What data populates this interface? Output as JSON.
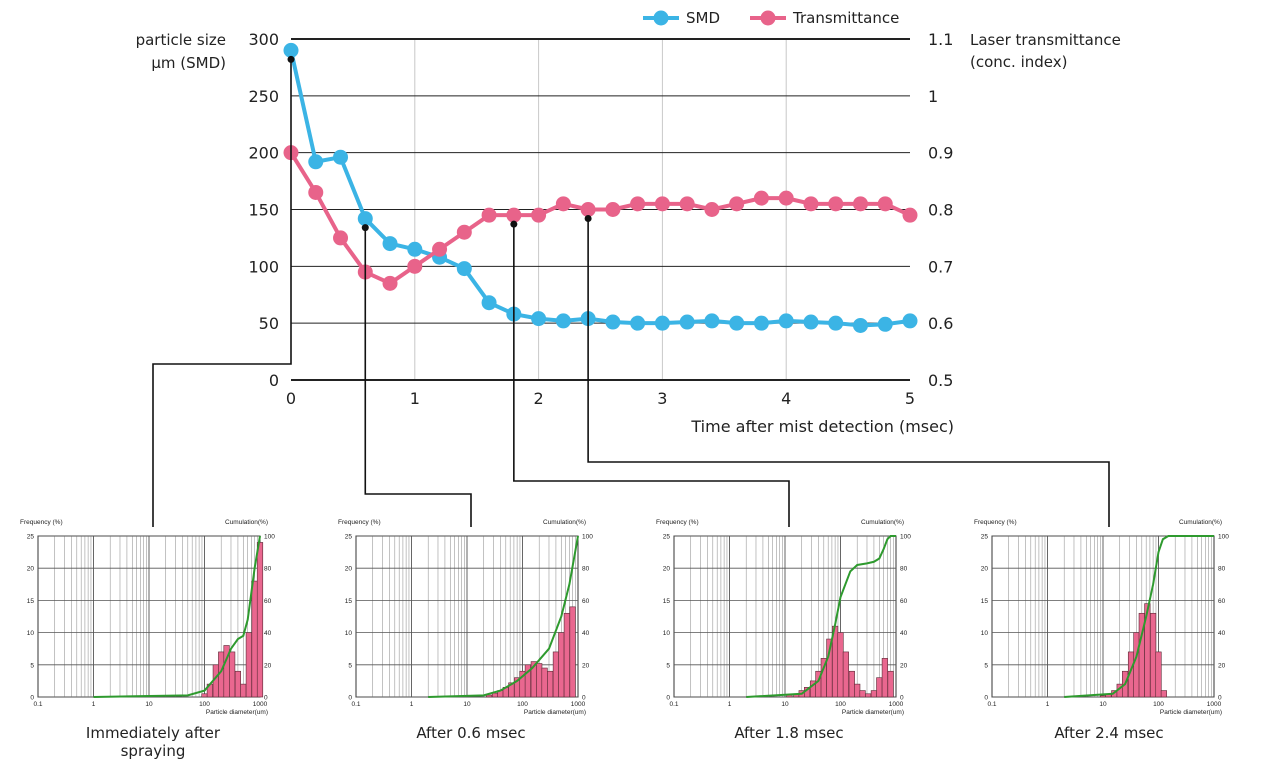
{
  "chart_data": [
    {
      "type": "line",
      "xlabel": "Time after mist detection (msec)",
      "ylabel": "particle size µm (SMD)",
      "ylabel_lines": [
        "particle size",
        "µm (SMD)"
      ],
      "y2label": "Laser transmittance (conc. index)",
      "y2label_lines": [
        "Laser transmittance",
        "(conc. index)"
      ],
      "xlim": [
        0,
        5
      ],
      "ylim": [
        0,
        300
      ],
      "y2lim": [
        0.5,
        1.1
      ],
      "x_ticks": [
        "0",
        "1",
        "2",
        "3",
        "4",
        "5"
      ],
      "y_ticks": [
        "0",
        "50",
        "100",
        "150",
        "200",
        "250",
        "300"
      ],
      "y2_ticks": [
        "0.5",
        "0.6",
        "0.7",
        "0.8",
        "0.9",
        "1",
        "1.1"
      ],
      "grid": true,
      "legend_position": "top-right",
      "series": [
        {
          "name": "SMD",
          "axis": "left",
          "color": "#3bb4e5",
          "x": [
            0,
            0.2,
            0.4,
            0.6,
            0.8,
            1.0,
            1.2,
            1.4,
            1.6,
            1.8,
            2.0,
            2.2,
            2.4,
            2.6,
            2.8,
            3.0,
            3.2,
            3.4,
            3.6,
            3.8,
            4.0,
            4.2,
            4.4,
            4.6,
            4.8,
            5.0
          ],
          "values": [
            290,
            192,
            196,
            142,
            120,
            115,
            108,
            98,
            68,
            58,
            54,
            52,
            54,
            51,
            50,
            50,
            51,
            52,
            50,
            50,
            52,
            51,
            50,
            48,
            49,
            52
          ]
        },
        {
          "name": "Transmittance",
          "axis": "right",
          "color": "#e8638a",
          "x": [
            0,
            0.2,
            0.4,
            0.6,
            0.8,
            1.0,
            1.2,
            1.4,
            1.6,
            1.8,
            2.0,
            2.2,
            2.4,
            2.6,
            2.8,
            3.0,
            3.2,
            3.4,
            3.6,
            3.8,
            4.0,
            4.2,
            4.4,
            4.6,
            4.8,
            5.0
          ],
          "values": [
            0.9,
            0.83,
            0.75,
            0.69,
            0.67,
            0.7,
            0.73,
            0.76,
            0.79,
            0.79,
            0.79,
            0.81,
            0.8,
            0.8,
            0.81,
            0.81,
            0.81,
            0.8,
            0.81,
            0.82,
            0.82,
            0.81,
            0.81,
            0.81,
            0.81,
            0.79
          ]
        }
      ],
      "callouts": [
        0,
        0.6,
        1.8,
        2.4
      ]
    },
    {
      "type": "bar",
      "caption": "Immediately after spraying",
      "caption_lines": [
        "Immediately after",
        "spraying"
      ],
      "ylabel": "Frequency (%)",
      "y2label": "Cumulation(%)",
      "xlabel": "Particle diameter(um)",
      "x_ticks": [
        "0.1",
        "1",
        "10",
        "100",
        "1000"
      ],
      "y_ticks": [
        "0",
        "5",
        "10",
        "15",
        "20",
        "25"
      ],
      "y2_ticks": [
        "0",
        "20",
        "40",
        "60",
        "80",
        "100"
      ],
      "xscale": "log",
      "xlim": [
        0.1,
        1000
      ],
      "ylim": [
        0,
        25
      ],
      "y2lim": [
        0,
        100
      ],
      "x": [
        100,
        125,
        160,
        200,
        250,
        315,
        400,
        500,
        630,
        800,
        1000
      ],
      "values": [
        0.5,
        2,
        5,
        7,
        8,
        7,
        4,
        2,
        10,
        18,
        24
      ],
      "cumulative": {
        "x": [
          1,
          50,
          100,
          200,
          300,
          400,
          500,
          600,
          700,
          800,
          1000
        ],
        "values": [
          0,
          1,
          4,
          16,
          30,
          36,
          38,
          48,
          65,
          80,
          100
        ]
      }
    },
    {
      "type": "bar",
      "caption": "After 0.6 msec",
      "caption_lines": [
        "After 0.6 msec"
      ],
      "ylabel": "Frequency (%)",
      "y2label": "Cumulation(%)",
      "xlabel": "Particle diameter(um)",
      "x_ticks": [
        "0.1",
        "1",
        "10",
        "100",
        "1000"
      ],
      "y_ticks": [
        "0",
        "5",
        "10",
        "15",
        "20",
        "25"
      ],
      "y2_ticks": [
        "0",
        "20",
        "40",
        "60",
        "80",
        "100"
      ],
      "xscale": "log",
      "xlim": [
        0.1,
        1000
      ],
      "ylim": [
        0,
        25
      ],
      "y2lim": [
        0,
        100
      ],
      "x": [
        25,
        32,
        40,
        50,
        63,
        80,
        100,
        125,
        160,
        200,
        250,
        315,
        400,
        500,
        630,
        800
      ],
      "values": [
        0.3,
        0.6,
        1,
        1.5,
        2.2,
        3,
        4,
        5,
        5.5,
        5.2,
        4.5,
        4,
        7,
        10,
        13,
        14
      ],
      "cumulative": {
        "x": [
          2,
          20,
          40,
          80,
          150,
          300,
          500,
          700,
          1000
        ],
        "values": [
          0,
          1,
          4,
          10,
          18,
          30,
          50,
          70,
          100
        ]
      }
    },
    {
      "type": "bar",
      "caption": "After 1.8 msec",
      "caption_lines": [
        "After 1.8 msec"
      ],
      "ylabel": "Frequency (%)",
      "y2label": "Cumulation(%)",
      "xlabel": "Particle diameter(um)",
      "x_ticks": [
        "0.1",
        "1",
        "10",
        "100",
        "1000"
      ],
      "y_ticks": [
        "0",
        "5",
        "10",
        "15",
        "20",
        "25"
      ],
      "y2_ticks": [
        "0",
        "20",
        "40",
        "60",
        "80",
        "100"
      ],
      "xscale": "log",
      "xlim": [
        0.1,
        1000
      ],
      "ylim": [
        0,
        25
      ],
      "y2lim": [
        0,
        100
      ],
      "x": [
        12,
        16,
        20,
        25,
        32,
        40,
        50,
        63,
        80,
        100,
        125,
        160,
        200,
        250,
        315,
        400,
        500,
        630,
        800
      ],
      "values": [
        0.3,
        0.5,
        1,
        1.5,
        2.5,
        4,
        6,
        9,
        11,
        10,
        7,
        4,
        2,
        1,
        0.5,
        1,
        3,
        6,
        4
      ],
      "cumulative": {
        "x": [
          2,
          20,
          40,
          60,
          80,
          100,
          150,
          200,
          300,
          400,
          500,
          600,
          700,
          800,
          1000
        ],
        "values": [
          0,
          2,
          10,
          25,
          45,
          62,
          78,
          82,
          83,
          84,
          86,
          92,
          98,
          100,
          100
        ]
      }
    },
    {
      "type": "bar",
      "caption": "After 2.4 msec",
      "caption_lines": [
        "After 2.4 msec"
      ],
      "ylabel": "Frequency (%)",
      "y2label": "Cumulation(%)",
      "xlabel": "Particle diameter(um)",
      "x_ticks": [
        "0.1",
        "1",
        "10",
        "100",
        "1000"
      ],
      "y_ticks": [
        "0",
        "5",
        "10",
        "15",
        "20",
        "25"
      ],
      "y2_ticks": [
        "0",
        "20",
        "40",
        "60",
        "80",
        "100"
      ],
      "xscale": "log",
      "xlim": [
        0.1,
        1000
      ],
      "ylim": [
        0,
        25
      ],
      "y2lim": [
        0,
        100
      ],
      "x": [
        10,
        12.5,
        16,
        20,
        25,
        32,
        40,
        50,
        63,
        80,
        100,
        125
      ],
      "values": [
        0.2,
        0.5,
        1,
        2,
        4,
        7,
        10,
        13,
        14.5,
        13,
        7,
        1
      ],
      "cumulative": {
        "x": [
          2,
          15,
          25,
          40,
          60,
          80,
          100,
          120,
          150,
          1000
        ],
        "values": [
          0,
          2,
          8,
          25,
          50,
          70,
          90,
          98,
          100,
          100
        ]
      }
    }
  ]
}
